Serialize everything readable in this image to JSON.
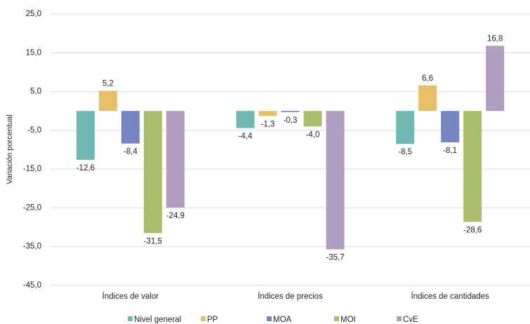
{
  "chart_data": {
    "type": "bar",
    "y_label": "Variación porcentual",
    "categories": [
      "Índices de valor",
      "Índices de precios",
      "Índices de cantidades"
    ],
    "series": [
      {
        "name": "Nivel general",
        "color": "#6fb9b2",
        "values": [
          -12.6,
          -4.4,
          -8.5
        ],
        "value_labels": [
          "-12,6",
          "-4,4",
          "-8,5"
        ]
      },
      {
        "name": "PP",
        "color": "#e7bf66",
        "values": [
          5.2,
          -1.3,
          6.6
        ],
        "value_labels": [
          "5,2",
          "-1,3",
          "6,6"
        ]
      },
      {
        "name": "MOA",
        "color": "#7585c4",
        "values": [
          -8.4,
          -0.3,
          -8.1
        ],
        "value_labels": [
          "-8,4",
          "-0,3",
          "-8,1"
        ]
      },
      {
        "name": "MOI",
        "color": "#a9bf6b",
        "values": [
          -31.5,
          -4.0,
          -28.6
        ],
        "value_labels": [
          "-31,5",
          "-4,0",
          "-28,6"
        ]
      },
      {
        "name": "CvE",
        "color": "#b09dbf",
        "values": [
          -24.9,
          -35.7,
          16.8
        ],
        "value_labels": [
          "-24,9",
          "-35,7",
          "16,8"
        ]
      }
    ],
    "ylim": [
      -45,
      25
    ],
    "yticks": [
      {
        "value": 25,
        "label": "25,0"
      },
      {
        "value": 15,
        "label": "15,0"
      },
      {
        "value": 5,
        "label": "5,0"
      },
      {
        "value": -5,
        "label": "-5,0"
      },
      {
        "value": -15,
        "label": "-15,0"
      },
      {
        "value": -25,
        "label": "-25,0"
      },
      {
        "value": -35,
        "label": "-35,0"
      },
      {
        "value": -45,
        "label": "-45,0"
      }
    ],
    "grid": true,
    "legend": "bottom"
  }
}
